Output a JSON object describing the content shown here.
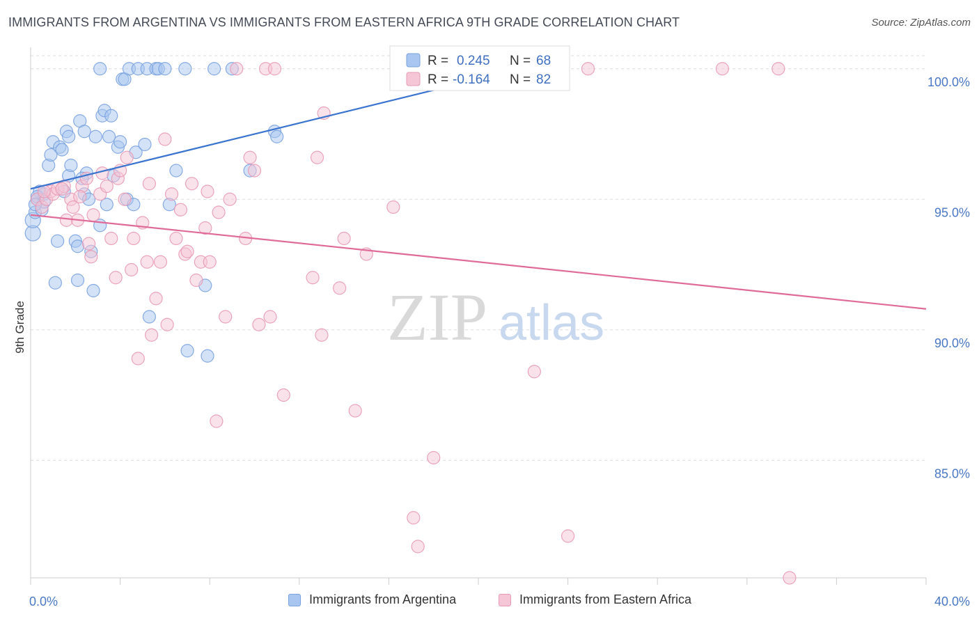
{
  "header": {
    "title": "IMMIGRANTS FROM ARGENTINA VS IMMIGRANTS FROM EASTERN AFRICA 9TH GRADE CORRELATION CHART",
    "source": "Source: ZipAtlas.com"
  },
  "watermark": {
    "zip": "ZIP",
    "atlas": "atlas"
  },
  "stats": {
    "r_label": "R =",
    "n_label": "N =",
    "rows": [
      {
        "r": "0.245",
        "n": "68",
        "color": "#a8c6f0"
      },
      {
        "r": "-0.164",
        "n": "82",
        "color": "#f5b8cc"
      }
    ]
  },
  "legend": {
    "items": [
      {
        "label": "Immigrants from Argentina",
        "color": "#a8c6f0",
        "border": "#7aa2e0"
      },
      {
        "label": "Immigrants from Eastern Africa",
        "color": "#f5c6d6",
        "border": "#e89ab5"
      }
    ]
  },
  "chart_data": {
    "type": "scatter",
    "title": "IMMIGRANTS FROM ARGENTINA VS IMMIGRANTS FROM EASTERN AFRICA 9TH GRADE CORRELATION CHART",
    "xlabel": "",
    "ylabel": "9th Grade",
    "xlim": [
      0,
      40
    ],
    "ylim": [
      80.5,
      100.5
    ],
    "x_tick_labels": [
      "0.0%",
      "40.0%"
    ],
    "y_ticks": [
      85,
      90,
      95,
      100
    ],
    "y_tick_labels": [
      "85.0%",
      "90.0%",
      "95.0%",
      "100.0%"
    ],
    "grid": true,
    "legend_position": "bottom",
    "series": [
      {
        "name": "Immigrants from Argentina",
        "color": "#7aa2e0",
        "fill": "#a8c6f0",
        "r": 0.245,
        "n": 68,
        "trend": {
          "x": [
            0,
            20
          ],
          "y": [
            95.4,
            99.6
          ]
        },
        "points": [
          [
            0.1,
            93.7
          ],
          [
            0.1,
            94.2
          ],
          [
            0.2,
            94.5
          ],
          [
            0.3,
            95.0
          ],
          [
            0.4,
            95.3
          ],
          [
            0.5,
            94.6
          ],
          [
            0.6,
            95.2
          ],
          [
            0.8,
            96.3
          ],
          [
            0.9,
            96.7
          ],
          [
            1.0,
            97.2
          ],
          [
            1.2,
            93.4
          ],
          [
            1.1,
            91.8
          ],
          [
            1.3,
            97.0
          ],
          [
            1.4,
            96.9
          ],
          [
            1.6,
            97.6
          ],
          [
            1.7,
            97.4
          ],
          [
            1.7,
            95.9
          ],
          [
            1.8,
            96.3
          ],
          [
            2.0,
            93.4
          ],
          [
            2.1,
            93.2
          ],
          [
            2.1,
            91.9
          ],
          [
            2.2,
            98.0
          ],
          [
            2.4,
            97.6
          ],
          [
            2.4,
            95.2
          ],
          [
            2.5,
            96.0
          ],
          [
            2.6,
            95.0
          ],
          [
            2.7,
            93.0
          ],
          [
            2.8,
            91.5
          ],
          [
            2.9,
            97.4
          ],
          [
            3.1,
            94.0
          ],
          [
            3.2,
            98.2
          ],
          [
            3.3,
            98.4
          ],
          [
            3.4,
            94.8
          ],
          [
            3.5,
            97.4
          ],
          [
            3.6,
            98.2
          ],
          [
            3.7,
            95.9
          ],
          [
            3.9,
            97.0
          ],
          [
            4.0,
            97.2
          ],
          [
            4.1,
            99.6
          ],
          [
            4.2,
            99.6
          ],
          [
            4.3,
            95.0
          ],
          [
            4.4,
            100.0
          ],
          [
            4.6,
            94.8
          ],
          [
            4.7,
            96.8
          ],
          [
            4.8,
            100.0
          ],
          [
            5.1,
            97.1
          ],
          [
            5.2,
            100.0
          ],
          [
            5.3,
            90.5
          ],
          [
            5.6,
            100.0
          ],
          [
            5.7,
            100.0
          ],
          [
            6.0,
            100.0
          ],
          [
            6.2,
            94.8
          ],
          [
            6.5,
            96.1
          ],
          [
            6.9,
            100.0
          ],
          [
            7.0,
            89.2
          ],
          [
            7.8,
            91.7
          ],
          [
            7.9,
            89.0
          ],
          [
            8.2,
            100.0
          ],
          [
            9.0,
            100.0
          ],
          [
            9.8,
            96.1
          ],
          [
            10.9,
            97.6
          ],
          [
            11.0,
            97.4
          ],
          [
            3.1,
            100.0
          ],
          [
            0.3,
            95.1
          ],
          [
            0.6,
            94.9
          ],
          [
            1.5,
            95.3
          ],
          [
            2.3,
            95.8
          ],
          [
            0.2,
            94.8
          ]
        ]
      },
      {
        "name": "Immigrants from Eastern Africa",
        "color": "#e89ab5",
        "fill": "#f5c6d6",
        "r": -0.164,
        "n": 82,
        "trend": {
          "x": [
            0,
            40
          ],
          "y": [
            94.4,
            90.8
          ]
        },
        "points": [
          [
            0.3,
            95.0
          ],
          [
            0.5,
            94.7
          ],
          [
            0.7,
            95.0
          ],
          [
            0.9,
            95.3
          ],
          [
            1.0,
            95.2
          ],
          [
            1.2,
            95.4
          ],
          [
            1.5,
            95.5
          ],
          [
            1.6,
            94.2
          ],
          [
            1.8,
            95.0
          ],
          [
            1.9,
            94.7
          ],
          [
            2.1,
            94.2
          ],
          [
            2.3,
            95.5
          ],
          [
            2.5,
            95.8
          ],
          [
            2.6,
            93.3
          ],
          [
            2.7,
            92.8
          ],
          [
            2.8,
            94.4
          ],
          [
            3.1,
            95.2
          ],
          [
            3.2,
            96.0
          ],
          [
            3.4,
            95.5
          ],
          [
            3.6,
            93.5
          ],
          [
            3.8,
            92.0
          ],
          [
            3.9,
            95.8
          ],
          [
            4.0,
            96.1
          ],
          [
            4.2,
            95.0
          ],
          [
            4.3,
            96.6
          ],
          [
            4.5,
            92.3
          ],
          [
            4.6,
            93.5
          ],
          [
            4.8,
            88.9
          ],
          [
            5.0,
            94.1
          ],
          [
            5.2,
            92.6
          ],
          [
            5.3,
            95.6
          ],
          [
            5.4,
            89.8
          ],
          [
            5.6,
            91.2
          ],
          [
            5.8,
            92.6
          ],
          [
            6.0,
            97.3
          ],
          [
            6.1,
            90.2
          ],
          [
            6.3,
            95.2
          ],
          [
            6.5,
            93.5
          ],
          [
            6.7,
            94.6
          ],
          [
            6.9,
            92.9
          ],
          [
            7.0,
            93.0
          ],
          [
            7.2,
            95.6
          ],
          [
            7.4,
            91.9
          ],
          [
            7.6,
            92.6
          ],
          [
            7.8,
            93.9
          ],
          [
            7.9,
            95.3
          ],
          [
            8.0,
            92.6
          ],
          [
            8.3,
            86.5
          ],
          [
            8.4,
            94.5
          ],
          [
            8.7,
            90.5
          ],
          [
            8.9,
            95.0
          ],
          [
            9.2,
            100.0
          ],
          [
            9.6,
            93.5
          ],
          [
            9.8,
            96.6
          ],
          [
            10.0,
            96.1
          ],
          [
            10.2,
            90.2
          ],
          [
            10.5,
            100.0
          ],
          [
            10.7,
            90.5
          ],
          [
            10.9,
            100.0
          ],
          [
            11.3,
            87.5
          ],
          [
            12.6,
            92.0
          ],
          [
            12.8,
            96.6
          ],
          [
            13.0,
            89.8
          ],
          [
            13.1,
            98.3
          ],
          [
            13.8,
            91.6
          ],
          [
            14.0,
            93.5
          ],
          [
            14.5,
            86.9
          ],
          [
            15.0,
            92.9
          ],
          [
            16.2,
            94.7
          ],
          [
            17.1,
            82.8
          ],
          [
            17.3,
            81.7
          ],
          [
            18.0,
            85.1
          ],
          [
            20.5,
            100.0
          ],
          [
            22.5,
            88.4
          ],
          [
            24.0,
            82.1
          ],
          [
            24.9,
            100.0
          ],
          [
            30.9,
            100.0
          ],
          [
            33.4,
            100.0
          ],
          [
            33.9,
            80.5
          ],
          [
            1.4,
            95.4
          ],
          [
            2.2,
            95.1
          ],
          [
            0.6,
            95.3
          ]
        ]
      }
    ]
  }
}
